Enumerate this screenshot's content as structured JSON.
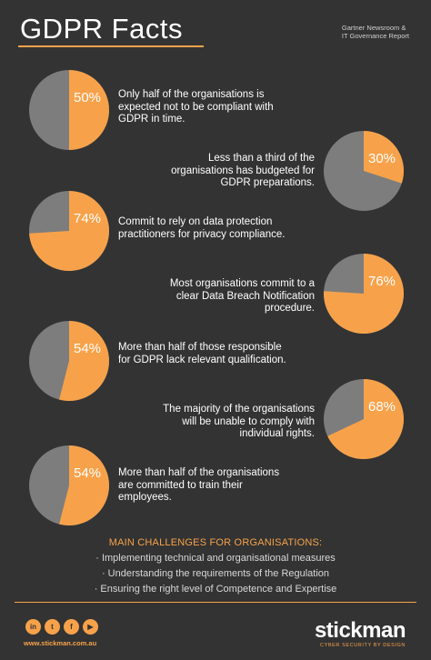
{
  "header": {
    "title": "GDPR Facts",
    "source_line1": "Gartner Newsroom &",
    "source_line2": "IT Governance Report"
  },
  "colors": {
    "accent": "#f7a24a",
    "grey": "#7d7d7d",
    "background": "#333333"
  },
  "chart_data": {
    "type": "pie",
    "items": [
      {
        "percent": 50,
        "label": "50%",
        "lines": [
          "Only half of the organisations is",
          "expected not to be compliant with",
          "GDPR in time."
        ]
      },
      {
        "percent": 30,
        "label": "30%",
        "lines": [
          "Less than a third of the",
          "organisations has budgeted for",
          "GDPR preparations."
        ]
      },
      {
        "percent": 74,
        "label": "74%",
        "lines": [
          "Commit to rely on data protection",
          "practitioners for privacy compliance."
        ]
      },
      {
        "percent": 76,
        "label": "76%",
        "lines": [
          "Most organisations commit to a",
          "clear Data Breach Notification",
          "procedure."
        ]
      },
      {
        "percent": 54,
        "label": "54%",
        "lines": [
          "More than half of those responsible",
          "for GDPR lack relevant qualification."
        ]
      },
      {
        "percent": 68,
        "label": "68%",
        "lines": [
          "The majority of the organisations",
          "will be unable to comply with",
          "individual rights."
        ]
      },
      {
        "percent": 54,
        "label": "54%",
        "lines": [
          "More than half of the organisations",
          "are committed to train their",
          "employees."
        ]
      }
    ]
  },
  "challenges": {
    "heading": "MAIN CHALLENGES FOR ORGANISATIONS:",
    "items": [
      "· Implementing technical and organisational measures",
      "· Understanding the requirements of the Regulation",
      "· Ensuring the right level of Competence and Expertise"
    ]
  },
  "footer": {
    "social_icons": [
      "linkedin-icon",
      "twitter-icon",
      "facebook-icon",
      "youtube-icon"
    ],
    "social_glyphs": [
      "in",
      "t",
      "f",
      "▶"
    ],
    "website": "www.stickman.com.au",
    "logo": "stickman",
    "tagline": "CYBER SECURITY BY DESIGN"
  }
}
